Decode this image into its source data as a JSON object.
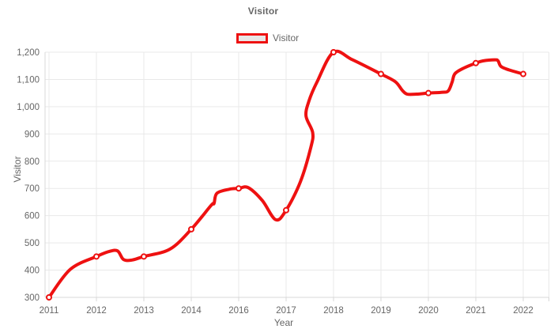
{
  "title": "Visitor",
  "legend": {
    "label": "Visitor"
  },
  "colors": {
    "line": "#ee1111",
    "marker_fill": "#ffffff",
    "legend_fill": "#e8e6e6",
    "text": "#666666",
    "grid": "#e9e9e9",
    "axis": "#d8d8d8"
  },
  "chart_data": {
    "type": "line",
    "title": "Visitor",
    "series_name": "Visitor",
    "categories": [
      "2011",
      "2012",
      "2013",
      "2014",
      "2016",
      "2017",
      "2018",
      "2019",
      "2020",
      "2021",
      "2022"
    ],
    "values": [
      300,
      450,
      450,
      550,
      700,
      620,
      1200,
      1120,
      1050,
      1160,
      1120
    ],
    "xlabel": "Year",
    "ylabel": "Visitor",
    "ylim": [
      300,
      1200
    ],
    "ytick_step": 100,
    "yticks": [
      "300",
      "400",
      "500",
      "600",
      "700",
      "800",
      "900",
      "1,000",
      "1,100",
      "1,200"
    ],
    "grid": true,
    "legend_position": "top",
    "smooth": true,
    "markers": true,
    "trace": [
      [
        0,
        300
      ],
      [
        0.45,
        403
      ],
      [
        1,
        450
      ],
      [
        1.28,
        469
      ],
      [
        1.45,
        470
      ],
      [
        1.57,
        439
      ],
      [
        1.75,
        437
      ],
      [
        2,
        450
      ],
      [
        2.55,
        477
      ],
      [
        3,
        550
      ],
      [
        3.42,
        638
      ],
      [
        3.48,
        645
      ],
      [
        3.54,
        682
      ],
      [
        3.8,
        697
      ],
      [
        4,
        700
      ],
      [
        4.2,
        703
      ],
      [
        4.5,
        655
      ],
      [
        4.78,
        585
      ],
      [
        5,
        620
      ],
      [
        5.3,
        724
      ],
      [
        5.52,
        850
      ],
      [
        5.56,
        905
      ],
      [
        5.42,
        965
      ],
      [
        5.48,
        1020
      ],
      [
        5.65,
        1090
      ],
      [
        6,
        1200
      ],
      [
        6.4,
        1172
      ],
      [
        7,
        1120
      ],
      [
        7.3,
        1092
      ],
      [
        7.45,
        1060
      ],
      [
        7.55,
        1046
      ],
      [
        7.75,
        1046
      ],
      [
        8,
        1050
      ],
      [
        8.3,
        1053
      ],
      [
        8.42,
        1058
      ],
      [
        8.5,
        1090
      ],
      [
        8.56,
        1121
      ],
      [
        8.75,
        1142
      ],
      [
        9,
        1160
      ],
      [
        9.15,
        1168
      ],
      [
        9.4,
        1172
      ],
      [
        9.47,
        1168
      ],
      [
        9.53,
        1148
      ],
      [
        9.7,
        1135
      ],
      [
        10,
        1120
      ]
    ]
  }
}
